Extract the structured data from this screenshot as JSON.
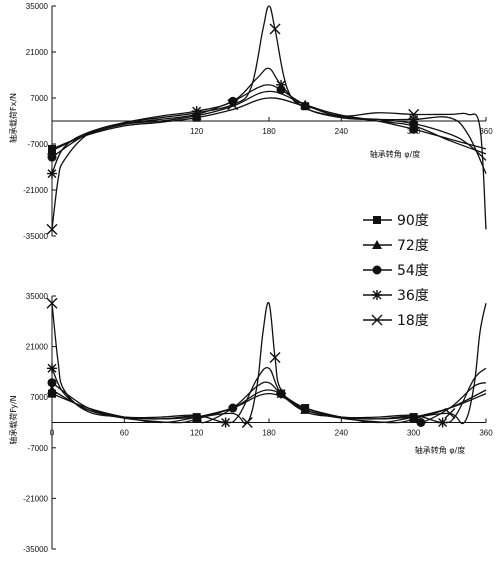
{
  "chart_data": [
    {
      "type": "line",
      "panel": "top",
      "ylabel": "轴承载荷Fx/N",
      "xlabel": "轴承转角 φ/度",
      "xlim": [
        0,
        360
      ],
      "ylim": [
        -35000,
        35000
      ],
      "xticks": [
        "120",
        "180",
        "240",
        "300",
        "360"
      ],
      "yticks": [
        "35000",
        "21000",
        "7000",
        "-7000",
        "-21000",
        "-35000"
      ],
      "grid": false,
      "series": [
        {
          "name": "90度",
          "marker": "square",
          "x": [
            0,
            30,
            60,
            90,
            120,
            150,
            180,
            210,
            240,
            270,
            300,
            330,
            360
          ],
          "y": [
            -8500,
            -4200,
            -1500,
            -400,
            1000,
            3500,
            7000,
            4500,
            1800,
            0,
            -2500,
            -5500,
            -8500
          ]
        },
        {
          "name": "72度",
          "marker": "triangle",
          "x": [
            0,
            30,
            60,
            90,
            120,
            150,
            180,
            210,
            240,
            270,
            300,
            330,
            360
          ],
          "y": [
            -9000,
            -4000,
            -1000,
            0,
            1600,
            4500,
            9000,
            5000,
            1600,
            0,
            -1500,
            -6000,
            -10000
          ]
        },
        {
          "name": "54度",
          "marker": "circle",
          "x": [
            0,
            30,
            60,
            90,
            120,
            150,
            170,
            180,
            190,
            210,
            240,
            270,
            300,
            330,
            345,
            360
          ],
          "y": [
            -11000,
            -3800,
            -800,
            500,
            2000,
            6000,
            10000,
            11000,
            9500,
            5000,
            1200,
            500,
            -800,
            -4000,
            -7000,
            -12000
          ]
        },
        {
          "name": "36度",
          "marker": "asterisk",
          "x": [
            0,
            10,
            30,
            60,
            90,
            120,
            150,
            170,
            180,
            190,
            210,
            240,
            270,
            300,
            330,
            345,
            360
          ],
          "y": [
            -16000,
            -8000,
            -3500,
            -500,
            1500,
            3000,
            6000,
            13000,
            16000,
            11000,
            4000,
            1000,
            500,
            500,
            1000,
            -4000,
            -16000
          ]
        },
        {
          "name": "18度",
          "marker": "x",
          "x": [
            0,
            5,
            10,
            30,
            60,
            90,
            120,
            150,
            165,
            175,
            180,
            185,
            195,
            210,
            240,
            270,
            300,
            330,
            345,
            355,
            360
          ],
          "y": [
            -33000,
            -18000,
            -12000,
            -4000,
            -500,
            1000,
            2500,
            5000,
            10000,
            28000,
            35000,
            28000,
            10000,
            4000,
            1500,
            2500,
            2000,
            2000,
            2000,
            -2000,
            -33000
          ]
        }
      ]
    },
    {
      "type": "line",
      "panel": "bottom",
      "ylabel": "轴承载荷Fy/N",
      "xlabel": "轴承转角 φ/度",
      "xlim": [
        0,
        360
      ],
      "ylim": [
        -35000,
        35000
      ],
      "xticks": [
        "0",
        "60",
        "120",
        "180",
        "240",
        "300",
        "360"
      ],
      "yticks": [
        "35000",
        "21000",
        "7000",
        "-7000",
        "-21000",
        "-35000"
      ],
      "grid": false,
      "series": [
        {
          "name": "90度",
          "marker": "square",
          "x": [
            0,
            30,
            60,
            90,
            120,
            150,
            180,
            210,
            240,
            270,
            300,
            330,
            360
          ],
          "y": [
            8000,
            4000,
            1500,
            0,
            1500,
            4000,
            8000,
            4000,
            1500,
            0,
            1500,
            4000,
            8000
          ]
        },
        {
          "name": "72度",
          "marker": "triangle",
          "x": [
            0,
            30,
            60,
            90,
            108,
            120,
            150,
            180,
            210,
            240,
            270,
            288,
            300,
            330,
            360
          ],
          "y": [
            9000,
            3500,
            1200,
            200,
            0,
            1000,
            4000,
            9000,
            3500,
            1200,
            200,
            0,
            1000,
            4000,
            9000
          ]
        },
        {
          "name": "54度",
          "marker": "circle",
          "x": [
            0,
            30,
            60,
            90,
            120,
            126,
            150,
            170,
            180,
            190,
            210,
            240,
            270,
            300,
            306,
            330,
            350,
            360
          ],
          "y": [
            11000,
            4000,
            1500,
            1000,
            1800,
            0,
            4000,
            10000,
            11000,
            8000,
            4000,
            1500,
            1000,
            1800,
            0,
            4000,
            10000,
            11000
          ]
        },
        {
          "name": "36度",
          "marker": "asterisk",
          "x": [
            0,
            10,
            30,
            60,
            90,
            120,
            144,
            155,
            170,
            180,
            190,
            210,
            240,
            270,
            300,
            324,
            335,
            350,
            360
          ],
          "y": [
            15000,
            8000,
            3500,
            1500,
            1500,
            2000,
            0,
            2000,
            12000,
            15000,
            8000,
            3500,
            1500,
            1500,
            2000,
            0,
            2000,
            12000,
            15000
          ]
        },
        {
          "name": "18度",
          "marker": "x",
          "x": [
            0,
            5,
            10,
            30,
            60,
            90,
            120,
            150,
            162,
            170,
            175,
            180,
            185,
            190,
            210,
            240,
            270,
            300,
            330,
            342,
            350,
            355,
            360
          ],
          "y": [
            33000,
            17000,
            9000,
            3000,
            1500,
            1000,
            1500,
            2500,
            0,
            10000,
            25000,
            33000,
            18000,
            9000,
            3000,
            1500,
            1000,
            1500,
            2500,
            0,
            10000,
            25000,
            33000
          ]
        }
      ]
    }
  ],
  "legend": {
    "placement": "right-middle",
    "items": [
      "90度",
      "72度",
      "54度",
      "36度",
      "18度"
    ]
  }
}
